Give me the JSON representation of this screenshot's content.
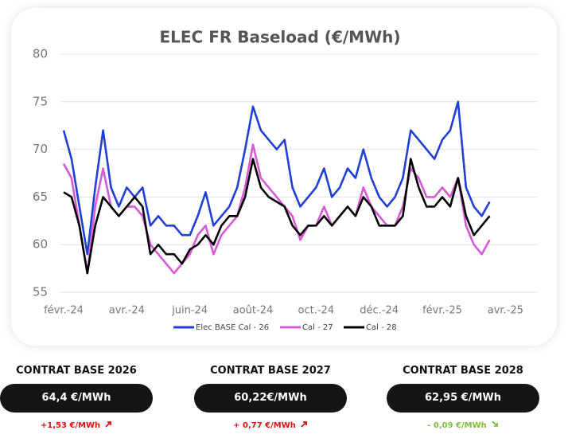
{
  "chart_data": {
    "type": "line",
    "title": "ELEC FR Baseload (€/MWh)",
    "categories": [
      "févr.-24",
      null,
      null,
      null,
      null,
      null,
      null,
      null,
      "avr.-24",
      null,
      null,
      null,
      null,
      null,
      null,
      null,
      "juin-24",
      null,
      null,
      null,
      null,
      null,
      null,
      null,
      "août-24",
      null,
      null,
      null,
      null,
      null,
      null,
      null,
      "oct.-24",
      null,
      null,
      null,
      null,
      null,
      null,
      null,
      "déc.-24",
      null,
      null,
      null,
      null,
      null,
      null,
      null,
      "févr.-25",
      null,
      null,
      null,
      null,
      null,
      null,
      null,
      "avr.-25",
      null,
      null,
      null,
      null
    ],
    "series": [
      {
        "name": "Elec BASE Cal - 26",
        "color": "#1f3fd6",
        "values": [
          72,
          69,
          64,
          59,
          66,
          72,
          66,
          64,
          66,
          65,
          66,
          62,
          63,
          62,
          62,
          61,
          61,
          63,
          65.5,
          62,
          63,
          64,
          66,
          70,
          74.5,
          72,
          71,
          70,
          71,
          66,
          64,
          65,
          66,
          68,
          65,
          66,
          68,
          67,
          70,
          67,
          65,
          64,
          65,
          67,
          72,
          71,
          70,
          69,
          71,
          72,
          75,
          66,
          64,
          63,
          64.5,
          null,
          null,
          null,
          null,
          null,
          null
        ]
      },
      {
        "name": "Cal - 27",
        "color": "#d65ad6",
        "values": [
          68.5,
          67,
          62,
          57,
          64,
          68,
          64,
          63,
          64,
          64,
          63,
          60,
          59,
          58,
          57,
          58,
          59,
          61,
          62,
          59,
          61,
          62,
          63,
          66,
          70.5,
          67,
          66,
          65,
          64,
          63,
          60.5,
          62,
          62,
          64,
          62,
          63,
          64,
          63,
          66,
          64,
          63,
          62,
          62,
          64,
          68,
          67,
          65,
          65,
          66,
          65,
          67,
          62,
          60,
          59,
          60.5,
          null,
          null,
          null,
          null,
          null,
          null
        ]
      },
      {
        "name": "Cal - 28",
        "color": "#000000",
        "values": [
          65.5,
          65,
          62,
          57,
          62,
          65,
          64,
          63,
          64,
          65,
          64,
          59,
          60,
          59,
          59,
          58,
          59.5,
          60,
          61,
          60,
          62,
          63,
          63,
          65,
          69,
          66,
          65,
          64.5,
          64,
          62,
          61,
          62,
          62,
          63,
          62,
          63,
          64,
          63,
          65,
          64,
          62,
          62,
          62,
          63,
          69,
          66,
          64,
          64,
          65,
          64,
          67,
          63,
          61,
          62,
          63,
          null,
          null,
          null,
          null,
          null,
          null
        ]
      }
    ],
    "ylim": [
      55,
      80
    ],
    "yticks": [
      55,
      60,
      65,
      70,
      75,
      80
    ],
    "grid": true
  },
  "cards": [
    {
      "title": "CONTRAT BASE 2026",
      "price": "64,4 €/MWh",
      "change": "+1,53 €/MWh",
      "color": "#e01010",
      "arrow": "up"
    },
    {
      "title": "CONTRAT BASE 2027",
      "price": "60,22€/MWh",
      "change": "+ 0,77 €/MWh",
      "color": "#e01010",
      "arrow": "up"
    },
    {
      "title": "CONTRAT BASE 2028",
      "price": "62,95 €/MWh",
      "change": "- 0,09 €/MWh",
      "color": "#7cbf3a",
      "arrow": "down"
    }
  ]
}
